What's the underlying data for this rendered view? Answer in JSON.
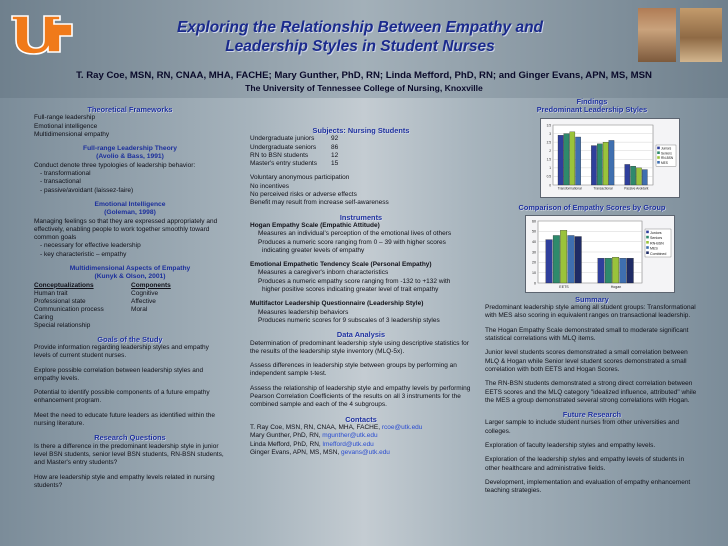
{
  "header": {
    "title_line1": "Exploring the Relationship Between Empathy and",
    "title_line2": "Leadership Styles in Student Nurses",
    "authors": "T. Ray Coe, MSN, RN, CNAA, MHA, FACHE; Mary Gunther, PhD, RN; Linda Mefford, PhD, RN; and Ginger Evans, APN, MS, MSN",
    "institution": "The University of Tennessee College of Nursing, Knoxville",
    "logo_icon": "ut-logo-icon"
  },
  "left": {
    "theoretical_heading": "Theoretical Frameworks",
    "frameworks": [
      "Full-range leadership",
      "Emotional intelligence",
      "Multidimensional empathy"
    ],
    "flt_heading": "Full-range Leadership Theory",
    "flt_cite": "(Avolio & Bass, 1991)",
    "flt_text": "Conduct denote three typologies of leadership behavior:",
    "flt_items": [
      "-   transformational",
      "-   transactional",
      "-   passive/avoidant (laissez-faire)"
    ],
    "ei_heading": "Emotional Intelligence",
    "ei_cite": "(Goleman, 1998)",
    "ei_text": "Managing feelings so that they are expressed appropriately and effectively, enabling people to work together smoothly toward common goals",
    "ei_items": [
      "-   necessary for effective leadership",
      "-   key characteristic – empathy"
    ],
    "mae_heading": "Multidimensional Aspects of Empathy",
    "mae_cite": "(Kunyk & Olson, 2001)",
    "mae_col1_head": "Conceptualizations",
    "mae_col2_head": "Components",
    "mae_rows": [
      [
        "Human trait",
        "Cognitive"
      ],
      [
        "Professional state",
        "Affective"
      ],
      [
        "Communication process",
        "Moral"
      ],
      [
        "Caring",
        ""
      ],
      [
        "Special relationship",
        ""
      ]
    ],
    "goals_heading": "Goals of the Study",
    "goals": [
      "Provide information regarding leadership styles and empathy levels of current student nurses.",
      "Explore possible correlation between leadership styles and empathy levels.",
      "Potential to identify possible components of a future empathy enhancement program.",
      "Meet the need to educate future leaders as identified within the nursing literature."
    ],
    "rq_heading": "Research Questions",
    "rq": [
      "Is there a difference in the predominant leadership style in junior level BSN students, senior level BSN students, RN-BSN students, and Master's entry students?",
      "How are leadership style and empathy levels related in nursing students?"
    ]
  },
  "middle": {
    "subjects_heading": "Subjects:  Nursing Students",
    "subjects": [
      [
        "Undergraduate juniors",
        "92"
      ],
      [
        "Undergraduate seniors",
        "86"
      ],
      [
        "RN to BSN students",
        "12"
      ],
      [
        "Master's entry students",
        "15"
      ]
    ],
    "participation": [
      "Voluntary anonymous participation",
      "No incentives",
      "No perceived risks or adverse effects",
      "Benefit may result from increase self-awareness"
    ],
    "instruments_heading": "Instruments",
    "hogan_title": "Hogan Empathy Scale (Empathic Attitude)",
    "hogan_items": [
      "Measures an individual's perception of the emotional lives of others",
      "Produces a numeric score ranging from 0 – 39 with higher scores",
      "indicating greater levels of empathy"
    ],
    "eets_title": "Emotional Empathetic Tendency Scale (Personal Empathy)",
    "eets_items": [
      "Measures a caregiver's inborn characteristics",
      "Produces a numeric empathy score ranging from -132 to +132 with",
      "higher positive scores indicating greater level of trait empathy"
    ],
    "mlq_title": "Multifactor Leadership Questionnaire (Leadership Style)",
    "mlq_items": [
      "Measures leadership behaviors",
      "Produces numeric scores for 9 subscales of 3 leadership styles"
    ],
    "da_heading": "Data Analysis",
    "da": [
      "Determination of predominant leadership style using descriptive statistics for the results of the leadership style inventory (MLQ-5x).",
      "Assess differences in leadership style between groups by performing an independent sample t-test.",
      "Assess the relationship of leadership style and empathy levels by performing Pearson Correlation Coefficients of the results on all 3 instruments for the combined sample and each of the 4 subgroups."
    ],
    "contacts_heading": "Contacts",
    "contacts": [
      {
        "name": "T. Ray Coe, MSN, RN, CNAA, MHA, FACHE,",
        "email": "rcoe@utk.edu"
      },
      {
        "name": "Mary Gunther, PhD, RN,",
        "email": "mgunther@utk.edu"
      },
      {
        "name": "Linda Mefford, PhD, RN,",
        "email": "lmefford@utk.edu"
      },
      {
        "name": "Ginger Evans, APN, MS, MSN,",
        "email": "gevans@utk.edu"
      }
    ]
  },
  "right": {
    "findings_heading": "Findings",
    "chart1_heading": "Predominant Leadership Styles",
    "chart2_heading": "Comparison of Empathy Scores by Group",
    "summary_heading": "Summary",
    "summary": [
      "Predominant leadership style among all student groups: Transformational with MES also scoring in equivalent ranges on transactional leadership.",
      "The Hogan Empathy Scale demonstrated small to moderate significant statistical correlations with MLQ items.",
      "Junior level students scores demonstrated a small correlation between MLQ & Hogan while Senior level student scores demonstrated a small correlation with both EETS and Hogan Scores.",
      "The RN-BSN students demonstrated a strong direct correlation between EETS scores and the MLQ category \"idealized influence, attributed\" while the MES a group demonstrated several strong correlations with Hogan."
    ],
    "future_heading": "Future Research",
    "future": [
      "Larger sample to include student nurses from other universities and colleges.",
      "Exploration of faculty leadership styles and empathy levels.",
      "Exploration of the leadership styles and empathy levels of students in other healthcare and administrative fields.",
      "Development, implementation and evaluation of empathy enhancement teaching strategies."
    ]
  },
  "chart_data": [
    {
      "type": "bar",
      "title": "Predominant Leadership Styles",
      "categories": [
        "Transformational",
        "Transactional",
        "Passive Avoidant"
      ],
      "ylim": [
        0,
        3.5
      ],
      "yticks": [
        "0",
        "0.5",
        "1",
        "1.5",
        "2",
        "2.5",
        "3",
        "3.5"
      ],
      "series": [
        {
          "name": "Juniors",
          "values": [
            2.9,
            2.3,
            1.2
          ],
          "color": "#2f3f9c"
        },
        {
          "name": "Seniors",
          "values": [
            3.0,
            2.4,
            1.1
          ],
          "color": "#2e8a6c"
        },
        {
          "name": "RN-BSN",
          "values": [
            3.1,
            2.5,
            1.0
          ],
          "color": "#9ac33b"
        },
        {
          "name": "MES",
          "values": [
            2.8,
            2.6,
            0.9
          ],
          "color": "#3f6fb0"
        }
      ],
      "legend": "right"
    },
    {
      "type": "bar",
      "title": "Comparison of Empathy Scores by Group",
      "categories": [
        "EETS",
        "Hogan"
      ],
      "ylim": [
        0,
        60
      ],
      "yticks": [
        "0",
        "10",
        "20",
        "30",
        "40",
        "50",
        "60"
      ],
      "series": [
        {
          "name": "Juniors",
          "values": [
            42,
            24
          ],
          "color": "#2f3f9c"
        },
        {
          "name": "Seniors",
          "values": [
            46,
            24
          ],
          "color": "#2e8a6c"
        },
        {
          "name": "RN-BSN",
          "values": [
            51,
            25
          ],
          "color": "#9ac33b"
        },
        {
          "name": "MES",
          "values": [
            46,
            24
          ],
          "color": "#3f6fb0"
        },
        {
          "name": "Combined",
          "values": [
            45,
            24
          ],
          "color": "#1f2c66"
        }
      ],
      "legend": "right"
    }
  ]
}
